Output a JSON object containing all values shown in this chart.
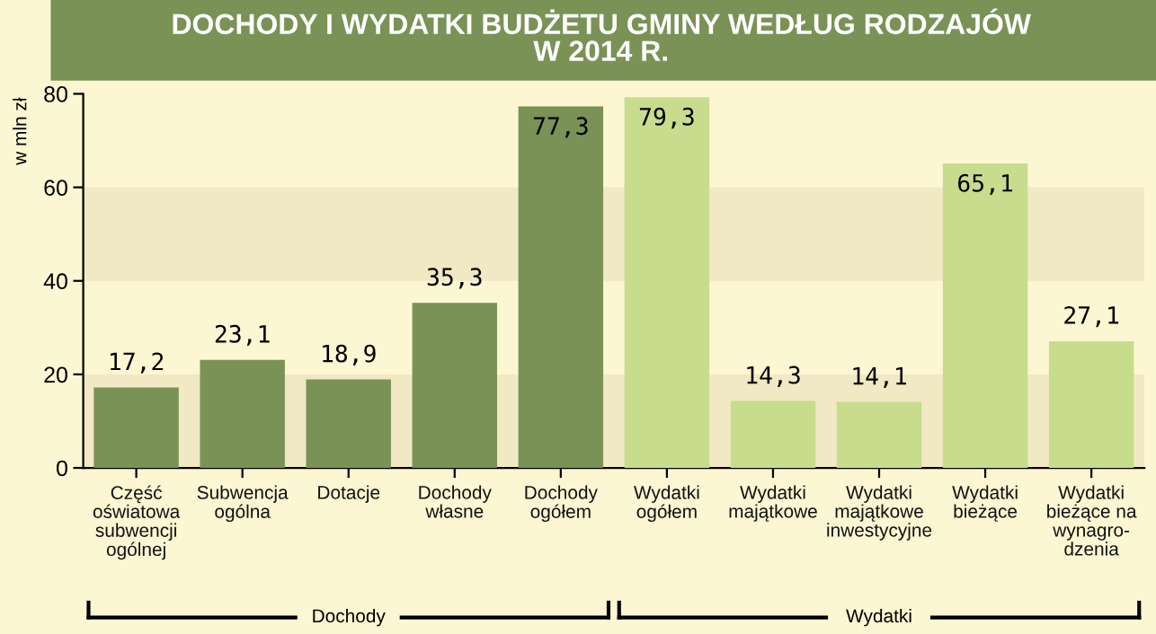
{
  "chart_data": {
    "type": "bar",
    "title": "DOCHODY I WYDATKI BUDŻETU GMINY WEDŁUG RODZAJÓW\nW 2014 R.",
    "ylabel": "w mln zł",
    "categories": [
      "Część\noświatowa\nsubwencji\nogólnej",
      "Subwencja\nogólna",
      "Dotacje",
      "Dochody\nwłasne",
      "Dochody\nogółem",
      "Wydatki\nogółem",
      "Wydatki\nmajątkowe",
      "Wydatki\nmajątkowe\ninwestycyjne",
      "Wydatki\nbieżące",
      "Wydatki\nbieżące na\nwynagro-\ndzenia"
    ],
    "values": [
      17.2,
      23.1,
      18.9,
      35.3,
      77.3,
      79.3,
      14.3,
      14.1,
      65.1,
      27.1
    ],
    "value_labels": [
      "17,2",
      "23,1",
      "18,9",
      "35,3",
      "77,3",
      "79,3",
      "14,3",
      "14,1",
      "65,1",
      "27,1"
    ],
    "colors": [
      "#7a9256",
      "#7a9256",
      "#7a9256",
      "#7a9256",
      "#7a9256",
      "#c8dc8e",
      "#c8dc8e",
      "#c8dc8e",
      "#c8dc8e",
      "#c8dc8e"
    ],
    "ylim": [
      0,
      80
    ],
    "yticks": [
      0,
      20,
      40,
      60,
      80
    ],
    "bands": [
      {
        "axis": "y",
        "from": 0,
        "to": 20,
        "color": "#f1e8c4"
      },
      {
        "axis": "y",
        "from": 40,
        "to": 60,
        "color": "#f1e8c4"
      }
    ],
    "annotations": [
      "Dochody",
      "Wydatki"
    ],
    "grid": false,
    "legend": false
  }
}
